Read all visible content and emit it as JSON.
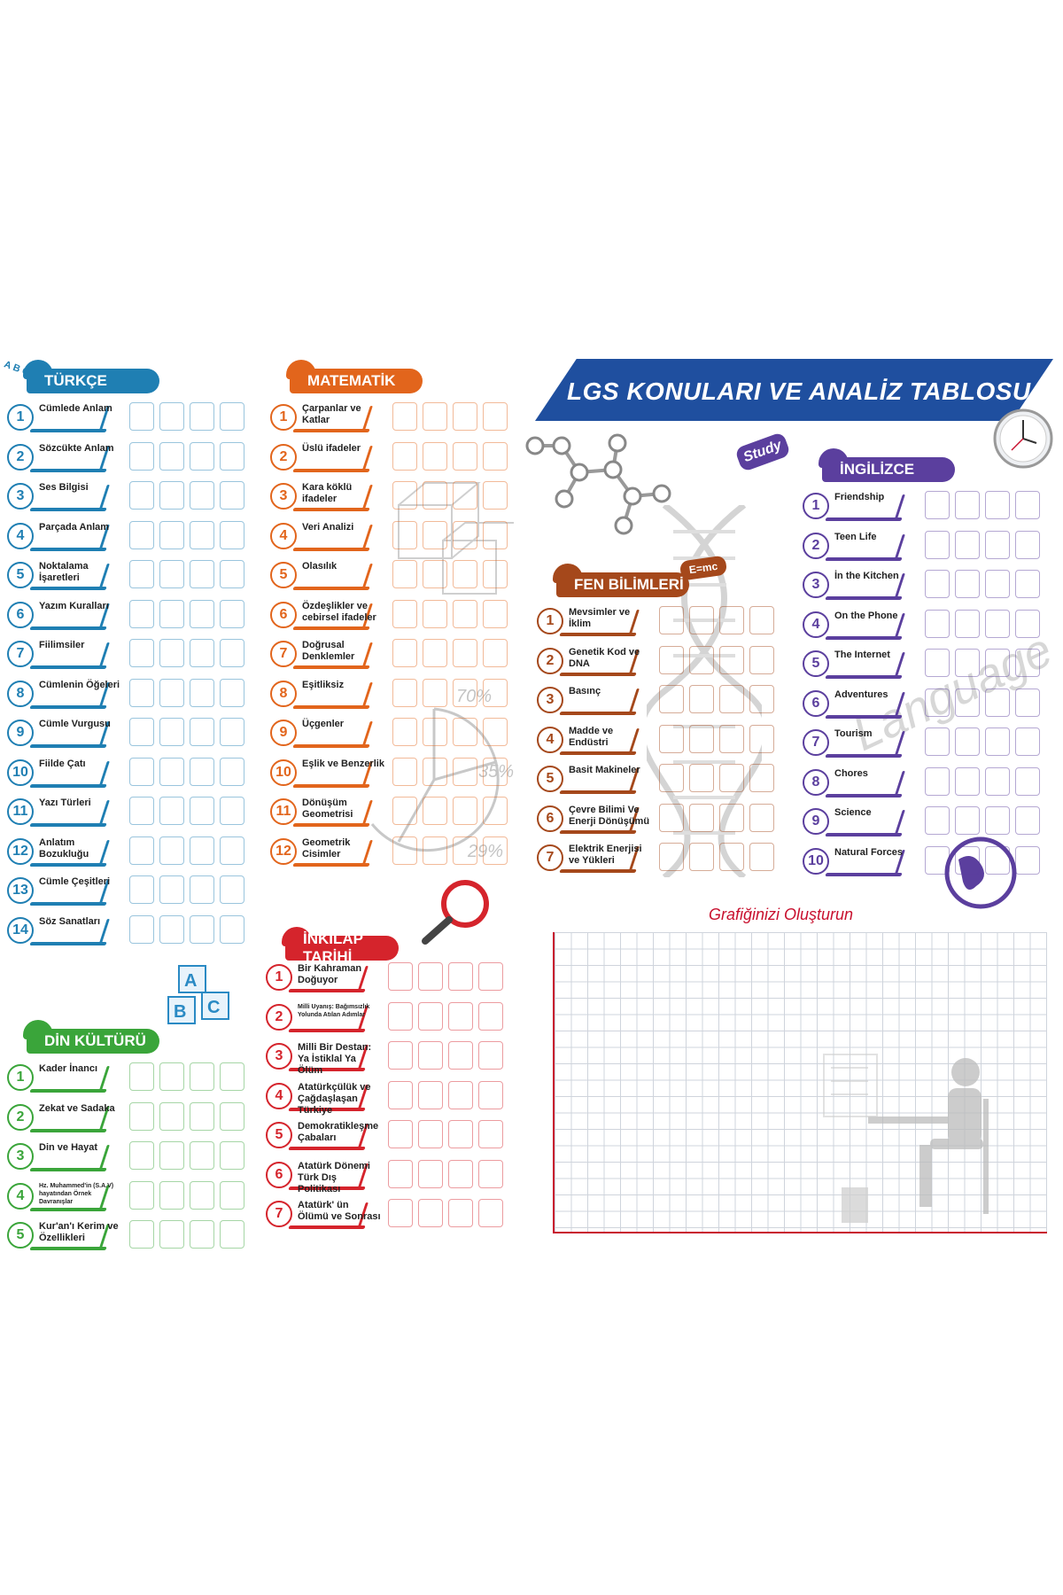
{
  "title": "LGS KONULARI VE ANALİZ TABLOSU",
  "graph_title": "Grafiğinizi Oluşturun",
  "decor": {
    "abc": "A B C",
    "study": "Study",
    "emc": "E=mc",
    "language": "Language",
    "pct1": "70%",
    "pct2": "35%",
    "pct3": "29%",
    "blocks": "ABC"
  },
  "colors": {
    "turkce": "#1f7fb3",
    "matematik": "#e2651c",
    "fen": "#a5481b",
    "ingilizce": "#5b3f9e",
    "din": "#3aa53a",
    "inkilap": "#d5242c",
    "title": "#1f4f9f"
  },
  "sections": {
    "turkce": {
      "title": "TÜRKÇE",
      "topics": [
        "Cümlede Anlam",
        "Sözcükte Anlam",
        "Ses Bilgisi",
        "Parçada Anlam",
        "Noktalama İşaretleri",
        "Yazım Kuralları",
        "Fiilimsiler",
        "Cümlenin Öğeleri",
        "Cümle Vurgusu",
        "Fiilde Çatı",
        "Yazı Türleri",
        "Anlatım Bozukluğu",
        "Cümle Çeşitleri",
        "Söz Sanatları"
      ]
    },
    "matematik": {
      "title": "MATEMATİK",
      "topics": [
        "Çarpanlar ve Katlar",
        "Üslü ifadeler",
        "Kara köklü ifadeler",
        "Veri Analizi",
        "Olasılık",
        "Özdeşlikler ve cebirsel ifadeler",
        "Doğrusal Denklemler",
        "Eşitliksiz",
        "Üçgenler",
        "Eşlik ve Benzerlik",
        "Dönüşüm Geometrisi",
        "Geometrik Cisimler"
      ]
    },
    "fen": {
      "title": "FEN BİLİMLERİ",
      "topics": [
        "Mevsimler ve İklim",
        "Genetik Kod ve DNA",
        "Basınç",
        "Madde ve Endüstri",
        "Basit Makineler",
        "Çevre Bilimi Ve Enerji Dönüşümü",
        "Elektrik Enerjisi ve Yükleri"
      ]
    },
    "ingilizce": {
      "title": "İNGİLİZCE",
      "topics": [
        "Friendship",
        "Teen Life",
        "İn the Kitchen",
        "On the Phone",
        "The Internet",
        "Adventures",
        "Tourism",
        "Chores",
        "Science",
        "Natural Forces"
      ]
    },
    "din": {
      "title": "DİN KÜLTÜRÜ",
      "topics": [
        "Kader İnancı",
        "Zekat ve Sadaka",
        "Din ve Hayat",
        "Hz. Muhammed'in (S.A.V) hayatından Örnek Davranışlar",
        "Kur'an'ı Kerim ve Özellikleri"
      ]
    },
    "inkilap": {
      "title": "İNKILAP TARİHİ",
      "topics": [
        "Bir Kahraman Doğuyor",
        "Milli Uyanış: Bağımsızlık Yolunda Atılan Adımlar",
        "Milli Bir Destan: Ya İstiklal Ya Ölüm",
        "Atatürkçülük ve Çağdaşlaşan Türkiye",
        "Demokratikleşme Çabaları",
        "Atatürk Dönemi Türk Dış Politikası",
        "Atatürk' ün Ölümü ve Sonrası"
      ]
    }
  }
}
